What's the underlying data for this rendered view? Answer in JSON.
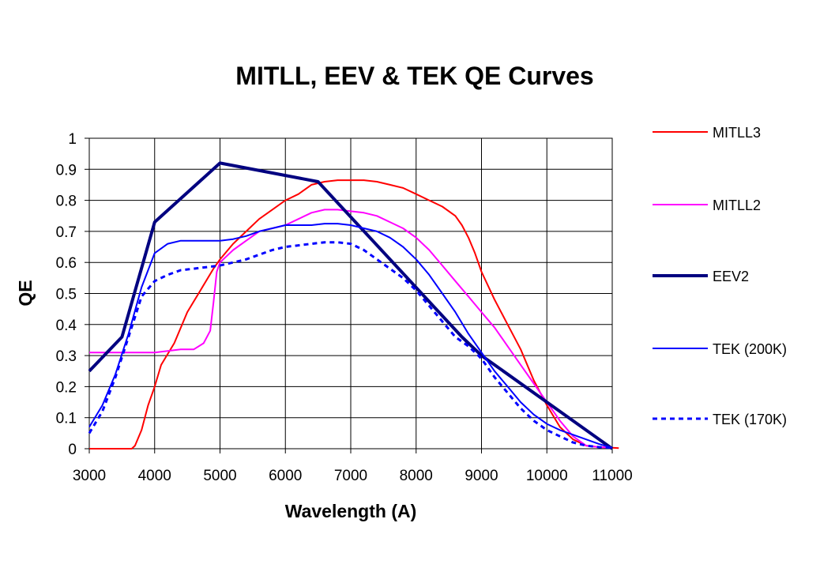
{
  "chart_data": {
    "type": "line",
    "title": "MITLL, EEV & TEK QE Curves",
    "xlabel": "Wavelength (A)",
    "ylabel": "QE",
    "xlim": [
      3000,
      11000
    ],
    "ylim": [
      0,
      1
    ],
    "xticks": [
      3000,
      4000,
      5000,
      6000,
      7000,
      8000,
      9000,
      10000,
      11000
    ],
    "yticks": [
      0,
      0.1,
      0.2,
      0.3,
      0.4,
      0.5,
      0.6,
      0.7,
      0.8,
      0.9,
      1
    ],
    "ytick_labels": [
      "0",
      "0.1",
      "0.2",
      "0.3",
      "0.4",
      "0.5",
      "0.6",
      "0.7",
      "0.8",
      "0.9",
      "1"
    ],
    "grid": true,
    "legend_position": "right",
    "series": [
      {
        "name": "MITLL3",
        "color": "#ff0000",
        "style": "solid",
        "x": [
          3000,
          3500,
          3650,
          3700,
          3800,
          3900,
          4000,
          4100,
          4300,
          4500,
          4700,
          4900,
          5000,
          5200,
          5400,
          5600,
          5800,
          6000,
          6200,
          6400,
          6600,
          6800,
          7000,
          7200,
          7400,
          7600,
          7800,
          8000,
          8200,
          8400,
          8600,
          8700,
          8800,
          8900,
          9000,
          9200,
          9400,
          9600,
          9800,
          10000,
          10200,
          10400,
          10600,
          10800,
          11000,
          11100
        ],
        "y": [
          0,
          0,
          0,
          0.01,
          0.06,
          0.14,
          0.2,
          0.27,
          0.34,
          0.44,
          0.51,
          0.58,
          0.61,
          0.66,
          0.7,
          0.74,
          0.77,
          0.8,
          0.82,
          0.85,
          0.86,
          0.865,
          0.865,
          0.865,
          0.86,
          0.85,
          0.84,
          0.82,
          0.8,
          0.78,
          0.75,
          0.72,
          0.68,
          0.63,
          0.57,
          0.48,
          0.4,
          0.32,
          0.22,
          0.14,
          0.07,
          0.03,
          0.01,
          0.005,
          0.003,
          0.002
        ]
      },
      {
        "name": "MITLL2",
        "color": "#ff00ff",
        "style": "solid",
        "x": [
          3000,
          3500,
          4000,
          4200,
          4400,
          4600,
          4750,
          4850,
          4900,
          4950,
          5000,
          5200,
          5400,
          5600,
          5800,
          6000,
          6200,
          6400,
          6600,
          6800,
          7000,
          7200,
          7400,
          7600,
          7800,
          8000,
          8200,
          8400,
          8600,
          8800,
          9000,
          9200,
          9400,
          9600,
          9800,
          10000,
          10200,
          10400,
          10600,
          10800,
          11000
        ],
        "y": [
          0.31,
          0.31,
          0.31,
          0.315,
          0.32,
          0.32,
          0.34,
          0.38,
          0.47,
          0.57,
          0.6,
          0.64,
          0.67,
          0.7,
          0.71,
          0.72,
          0.74,
          0.76,
          0.77,
          0.77,
          0.765,
          0.76,
          0.75,
          0.73,
          0.71,
          0.68,
          0.64,
          0.59,
          0.54,
          0.49,
          0.44,
          0.39,
          0.33,
          0.27,
          0.21,
          0.15,
          0.09,
          0.04,
          0.01,
          0.005,
          0.003
        ]
      },
      {
        "name": "EEV2",
        "color": "#000080",
        "style": "bold",
        "x": [
          3000,
          3500,
          4000,
          5000,
          6500,
          8700,
          9000,
          11000
        ],
        "y": [
          0.25,
          0.36,
          0.73,
          0.92,
          0.86,
          0.36,
          0.3,
          0
        ]
      },
      {
        "name": "TEK (200K)",
        "color": "#0000ff",
        "style": "solid",
        "x": [
          3000,
          3200,
          3400,
          3600,
          3800,
          4000,
          4200,
          4400,
          4600,
          4800,
          5000,
          5200,
          5400,
          5600,
          5800,
          6000,
          6200,
          6400,
          6600,
          6800,
          7000,
          7200,
          7400,
          7600,
          7800,
          8000,
          8200,
          8400,
          8600,
          8800,
          9000,
          9200,
          9400,
          9600,
          9800,
          10000,
          10200,
          10400,
          10600,
          10800,
          11000
        ],
        "y": [
          0.07,
          0.14,
          0.24,
          0.37,
          0.52,
          0.63,
          0.66,
          0.67,
          0.67,
          0.67,
          0.67,
          0.675,
          0.685,
          0.7,
          0.71,
          0.72,
          0.72,
          0.72,
          0.725,
          0.725,
          0.72,
          0.71,
          0.7,
          0.68,
          0.65,
          0.61,
          0.56,
          0.5,
          0.44,
          0.37,
          0.31,
          0.25,
          0.2,
          0.15,
          0.11,
          0.08,
          0.06,
          0.045,
          0.03,
          0.015,
          0.003
        ]
      },
      {
        "name": "TEK (170K)",
        "color": "#0000ff",
        "style": "dashed",
        "x": [
          3000,
          3200,
          3400,
          3600,
          3800,
          4000,
          4200,
          4400,
          4600,
          4800,
          5000,
          5200,
          5400,
          5600,
          5800,
          6000,
          6200,
          6400,
          6600,
          6800,
          7000,
          7200,
          7400,
          7600,
          7800,
          8000,
          8200,
          8400,
          8600,
          8800,
          9000,
          9200,
          9400,
          9600,
          9800,
          10000,
          10200,
          10400,
          10600,
          10800,
          11000
        ],
        "y": [
          0.05,
          0.12,
          0.23,
          0.36,
          0.49,
          0.54,
          0.56,
          0.575,
          0.58,
          0.585,
          0.59,
          0.6,
          0.61,
          0.625,
          0.64,
          0.65,
          0.655,
          0.66,
          0.665,
          0.665,
          0.66,
          0.64,
          0.61,
          0.58,
          0.55,
          0.51,
          0.46,
          0.41,
          0.36,
          0.33,
          0.29,
          0.23,
          0.18,
          0.13,
          0.09,
          0.06,
          0.04,
          0.02,
          0.01,
          0.005,
          0.003
        ]
      }
    ]
  }
}
